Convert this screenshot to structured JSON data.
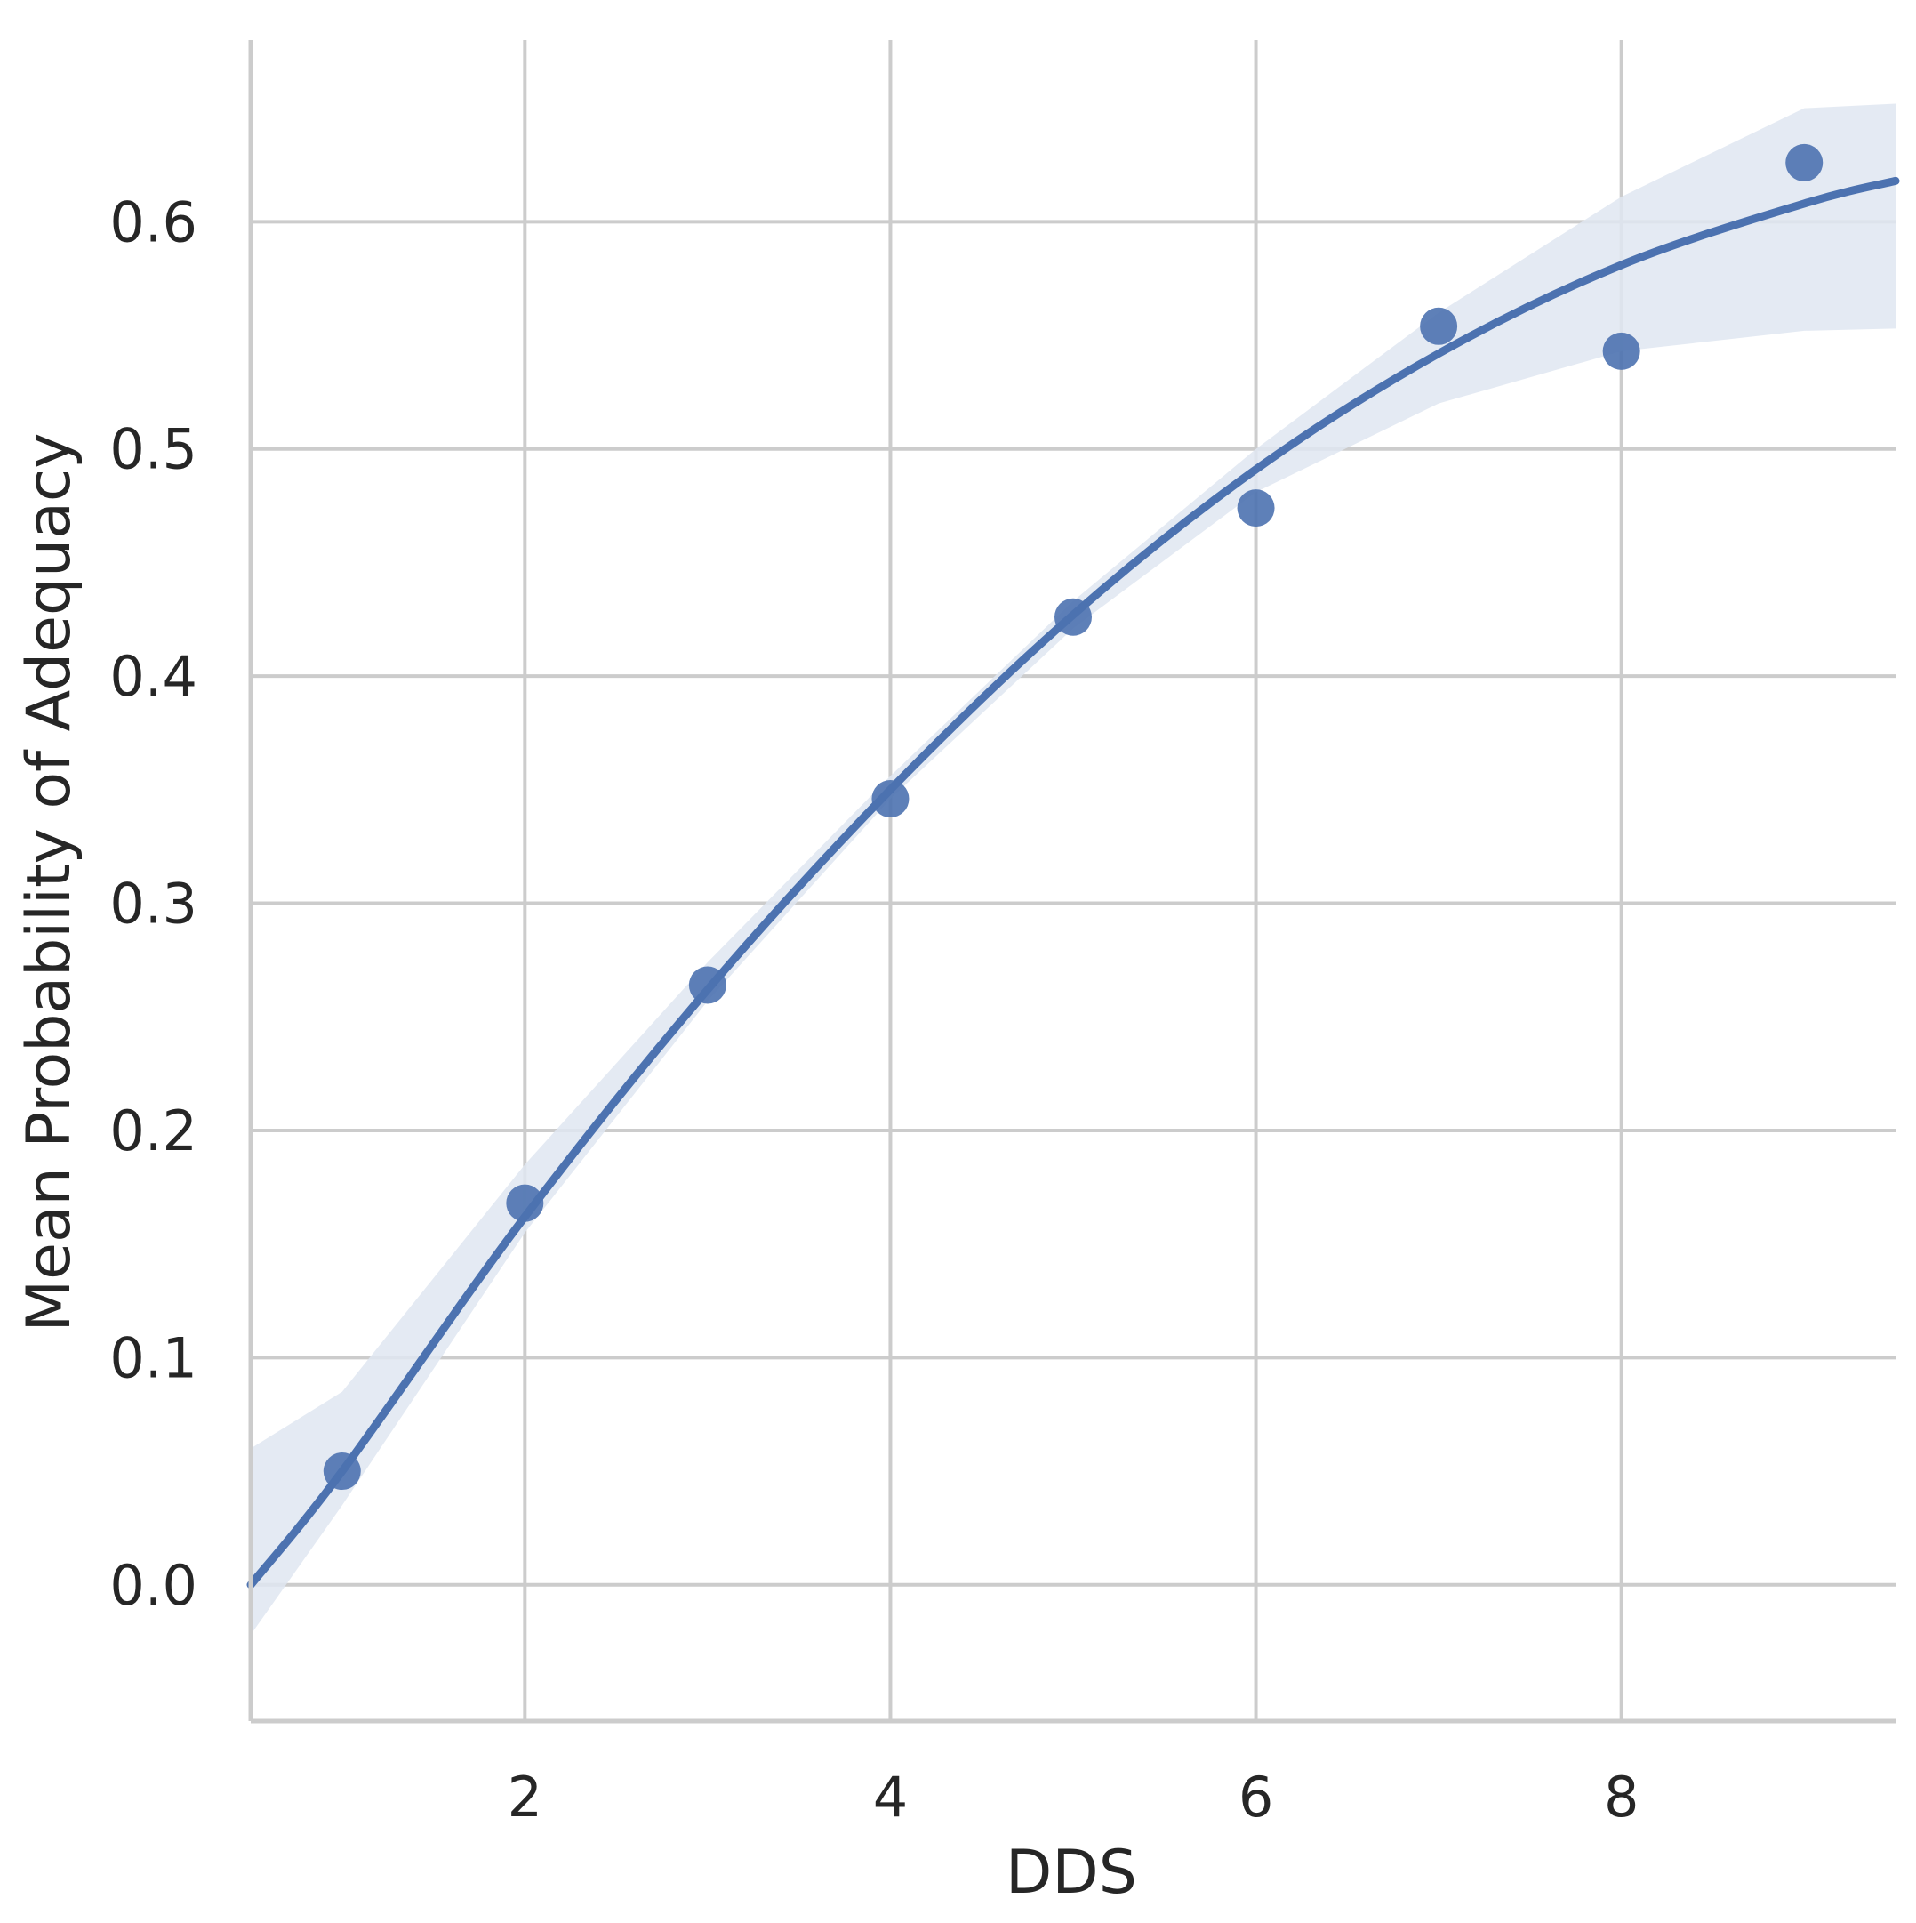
{
  "colors": {
    "series": "#4c72b0",
    "band": "#dfe6f1",
    "grid": "#cccccc",
    "axis": "#cccccc",
    "text": "#262626",
    "background": "#ffffff"
  },
  "chart_data": {
    "type": "scatter",
    "title": "",
    "xlabel": "DDS",
    "ylabel": "Mean Probability of Adequacy",
    "xlim": [
      0.5,
      9.5
    ],
    "ylim": [
      -0.06,
      0.68
    ],
    "x_ticks": [
      2,
      4,
      6,
      8
    ],
    "x_tick_labels": [
      "2",
      "4",
      "6",
      "8"
    ],
    "y_ticks": [
      0.0,
      0.1,
      0.2,
      0.3,
      0.4,
      0.5,
      0.6
    ],
    "y_tick_labels": [
      "0.0",
      "0.1",
      "0.2",
      "0.3",
      "0.4",
      "0.5",
      "0.6"
    ],
    "grid": true,
    "legend": "none",
    "series": [
      {
        "x": [
          1,
          2,
          3,
          4,
          5,
          6,
          7,
          8,
          9
        ],
        "y": [
          0.05,
          0.168,
          0.264,
          0.346,
          0.426,
          0.474,
          0.554,
          0.543,
          0.626
        ]
      }
    ],
    "fit": {
      "type": "quadratic",
      "x": [
        0.5,
        1,
        2,
        3,
        4,
        5,
        6,
        7,
        8,
        9,
        9.5
      ],
      "y": [
        0.0,
        0.05,
        0.162,
        0.262,
        0.35,
        0.427,
        0.491,
        0.542,
        0.581,
        0.608,
        0.618
      ],
      "ci_lower": [
        -0.022,
        0.035,
        0.155,
        0.257,
        0.346,
        0.421,
        0.481,
        0.52,
        0.543,
        0.552,
        0.553
      ],
      "ci_upper": [
        0.06,
        0.085,
        0.185,
        0.274,
        0.356,
        0.433,
        0.5,
        0.56,
        0.611,
        0.65,
        0.652
      ]
    }
  }
}
